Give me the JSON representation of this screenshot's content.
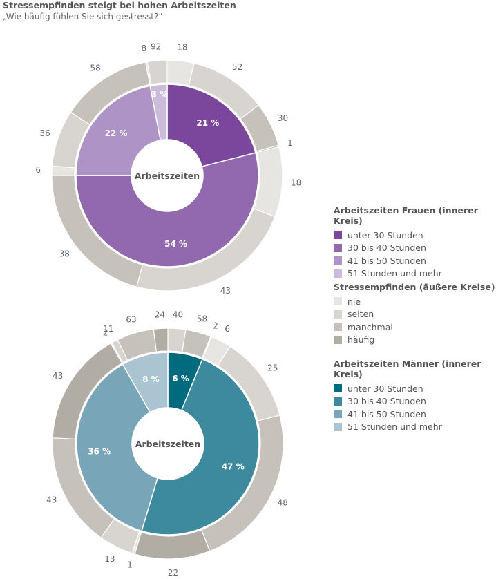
{
  "title": "Stressempfinden steigt bei hohen Arbeitszeiten",
  "subtitle": "„Wie häufig fühlen Sie sich gestresst?“",
  "center_label": "Arbeitszeiten",
  "legend": {
    "women_title": "Arbeitszeiten Frauen (innerer Kreis)",
    "stress_title": "Stressempfinden (äußere Kreise)",
    "men_title": "Arbeitszeiten Männer (innerer Kreis)",
    "hours": [
      "unter 30 Stunden",
      "30 bis 40 Stunden",
      "41 bis 50 Stunden",
      "51 Stunden und mehr"
    ],
    "stress": [
      "nie",
      "selten",
      "manchmal",
      "häufig"
    ]
  },
  "colors": {
    "women": [
      "#7b479d",
      "#9268ae",
      "#ae93c7",
      "#cbbcdc"
    ],
    "men": [
      "#006b7f",
      "#3d8a9f",
      "#78a5b7",
      "#aac4d1"
    ],
    "stress": [
      "#e7e5e2",
      "#d8d4cf",
      "#c6c1ba",
      "#b1aca4"
    ]
  },
  "chart_data": [
    {
      "type": "pie",
      "name": "Frauen",
      "inner": {
        "categories": [
          "unter 30 Stunden",
          "30 bis 40 Stunden",
          "41 bis 50 Stunden",
          "51 Stunden und mehr"
        ],
        "values": [
          21,
          54,
          22,
          3
        ],
        "labels": [
          "21 %",
          "54 %",
          "22 %",
          "3 %"
        ]
      },
      "outer": {
        "categories": [
          "nie",
          "selten",
          "manchmal",
          "häufig"
        ],
        "values_by_group": [
          [
            18,
            52,
            30,
            1
          ],
          [
            18,
            43,
            38,
            0
          ],
          [
            6,
            36,
            58,
            0
          ],
          [
            8,
            92,
            0,
            0
          ]
        ]
      }
    },
    {
      "type": "pie",
      "name": "Männer",
      "inner": {
        "categories": [
          "unter 30 Stunden",
          "30 bis 40 Stunden",
          "41 bis 50 Stunden",
          "51 Stunden und mehr"
        ],
        "values": [
          6,
          47,
          36,
          8
        ],
        "labels": [
          "6 %",
          "47 %",
          "36 %",
          "8 %"
        ]
      },
      "outer": {
        "categories": [
          "nie",
          "selten",
          "manchmal",
          "häufig"
        ],
        "values_by_group": [
          [
            0,
            40,
            58,
            2
          ],
          [
            6,
            25,
            48,
            22
          ],
          [
            1,
            13,
            43,
            43
          ],
          [
            2,
            11,
            63,
            24
          ]
        ]
      }
    }
  ]
}
